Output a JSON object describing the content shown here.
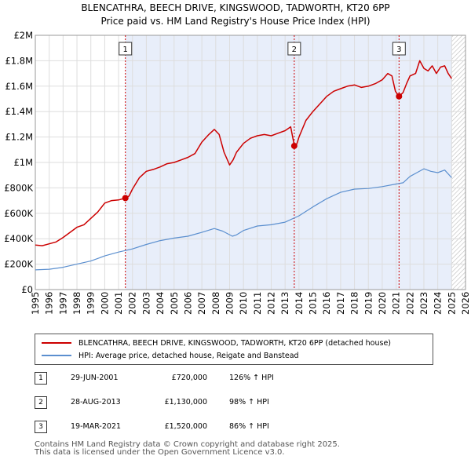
{
  "title_line1": "BLENCATHRA, BEECH DRIVE, KINGSWOOD, TADWORTH, KT20 6PP",
  "title_line2": "Price paid vs. HM Land Registry's House Price Index (HPI)",
  "colors": {
    "property": "#cc0000",
    "hpi": "#5b8fcf",
    "shade": "#e8eefa",
    "marker_line": "#cc0000",
    "grid": "#dddddd"
  },
  "chart_data": {
    "type": "line",
    "title": "Price paid vs. HM Land Registry's House Price Index (HPI)",
    "xlabel": "",
    "ylabel": "",
    "xlim": [
      1995,
      2026
    ],
    "ylim": [
      0,
      2000000
    ],
    "y_ticks": [
      {
        "value": 0,
        "label": "£0"
      },
      {
        "value": 200000,
        "label": "£200K"
      },
      {
        "value": 400000,
        "label": "£400K"
      },
      {
        "value": 600000,
        "label": "£600K"
      },
      {
        "value": 800000,
        "label": "£800K"
      },
      {
        "value": 1000000,
        "label": "£1M"
      },
      {
        "value": 1200000,
        "label": "£1.2M"
      },
      {
        "value": 1400000,
        "label": "£1.4M"
      },
      {
        "value": 1600000,
        "label": "£1.6M"
      },
      {
        "value": 1800000,
        "label": "£1.8M"
      },
      {
        "value": 2000000,
        "label": "£2M"
      }
    ],
    "x_ticks": [
      "1995",
      "1996",
      "1997",
      "1998",
      "1999",
      "2000",
      "2001",
      "2002",
      "2003",
      "2004",
      "2005",
      "2006",
      "2007",
      "2008",
      "2009",
      "2010",
      "2011",
      "2012",
      "2013",
      "2014",
      "2015",
      "2016",
      "2017",
      "2018",
      "2019",
      "2020",
      "2021",
      "2022",
      "2023",
      "2024",
      "2025",
      "2026"
    ],
    "shaded_range": [
      2001.49,
      2025.0
    ],
    "hatched_from": 2025.0,
    "series": [
      {
        "name": "BLENCATHRA, BEECH DRIVE, KINGSWOOD, TADWORTH, KT20 6PP (detached house)",
        "x": [
          1995.0,
          1995.5,
          1996.0,
          1996.5,
          1997.0,
          1997.5,
          1998.0,
          1998.5,
          1999.0,
          1999.5,
          2000.0,
          2000.5,
          2001.0,
          2001.49,
          2001.75,
          2002.0,
          2002.5,
          2003.0,
          2003.5,
          2004.0,
          2004.5,
          2005.0,
          2005.5,
          2006.0,
          2006.5,
          2007.0,
          2007.5,
          2007.9,
          2008.25,
          2008.6,
          2009.0,
          2009.25,
          2009.5,
          2010.0,
          2010.5,
          2011.0,
          2011.5,
          2012.0,
          2012.5,
          2013.0,
          2013.4,
          2013.65,
          2013.8,
          2014.0,
          2014.5,
          2015.0,
          2015.5,
          2016.0,
          2016.5,
          2017.0,
          2017.5,
          2018.0,
          2018.5,
          2019.0,
          2019.5,
          2020.0,
          2020.4,
          2020.7,
          2020.95,
          2021.21,
          2021.5,
          2021.75,
          2022.0,
          2022.4,
          2022.7,
          2023.0,
          2023.3,
          2023.6,
          2023.9,
          2024.2,
          2024.5,
          2024.75,
          2025.0
        ],
        "values": [
          350000,
          345000,
          360000,
          375000,
          410000,
          450000,
          490000,
          510000,
          560000,
          610000,
          680000,
          700000,
          705000,
          720000,
          735000,
          790000,
          880000,
          930000,
          945000,
          965000,
          990000,
          1000000,
          1020000,
          1040000,
          1070000,
          1160000,
          1220000,
          1260000,
          1220000,
          1080000,
          980000,
          1020000,
          1080000,
          1150000,
          1190000,
          1210000,
          1220000,
          1210000,
          1230000,
          1250000,
          1280000,
          1140000,
          1130000,
          1200000,
          1330000,
          1400000,
          1460000,
          1520000,
          1560000,
          1580000,
          1600000,
          1610000,
          1590000,
          1600000,
          1620000,
          1650000,
          1700000,
          1680000,
          1560000,
          1520000,
          1550000,
          1620000,
          1680000,
          1700000,
          1800000,
          1740000,
          1720000,
          1760000,
          1700000,
          1750000,
          1760000,
          1700000,
          1660000
        ]
      },
      {
        "name": "HPI: Average price, detached house, Reigate and Banstead",
        "x": [
          1995.0,
          1996.0,
          1997.0,
          1998.0,
          1999.0,
          2000.0,
          2001.0,
          2002.0,
          2003.0,
          2004.0,
          2005.0,
          2006.0,
          2007.0,
          2007.9,
          2008.5,
          2009.2,
          2009.5,
          2010.0,
          2011.0,
          2012.0,
          2013.0,
          2014.0,
          2015.0,
          2016.0,
          2017.0,
          2018.0,
          2019.0,
          2020.0,
          2021.0,
          2021.5,
          2022.0,
          2022.5,
          2023.0,
          2023.5,
          2024.0,
          2024.5,
          2025.0
        ],
        "values": [
          155000,
          160000,
          175000,
          200000,
          225000,
          265000,
          295000,
          320000,
          355000,
          385000,
          405000,
          420000,
          450000,
          480000,
          460000,
          420000,
          430000,
          465000,
          500000,
          510000,
          530000,
          580000,
          650000,
          715000,
          765000,
          790000,
          795000,
          810000,
          830000,
          840000,
          890000,
          920000,
          950000,
          930000,
          920000,
          940000,
          880000
        ]
      }
    ],
    "sales": [
      {
        "id": "1",
        "x": 2001.49,
        "value": 720000,
        "date": "29-JUN-2001",
        "price": "£720,000",
        "hpi": "126% ↑ HPI"
      },
      {
        "id": "2",
        "x": 2013.66,
        "value": 1130000,
        "date": "28-AUG-2013",
        "price": "£1,130,000",
        "hpi": "98% ↑ HPI"
      },
      {
        "id": "3",
        "x": 2021.21,
        "value": 1520000,
        "date": "19-MAR-2021",
        "price": "£1,520,000",
        "hpi": "86% ↑ HPI"
      }
    ]
  },
  "legend": {
    "property": "BLENCATHRA, BEECH DRIVE, KINGSWOOD, TADWORTH, KT20 6PP (detached house)",
    "hpi": "HPI: Average price, detached house, Reigate and Banstead"
  },
  "table": [
    {
      "num": "1",
      "date": "29-JUN-2001",
      "price": "£720,000",
      "hpi": "126% ↑ HPI"
    },
    {
      "num": "2",
      "date": "28-AUG-2013",
      "price": "£1,130,000",
      "hpi": "98% ↑ HPI"
    },
    {
      "num": "3",
      "date": "19-MAR-2021",
      "price": "£1,520,000",
      "hpi": "86% ↑ HPI"
    }
  ],
  "footer_line1": "Contains HM Land Registry data © Crown copyright and database right 2025.",
  "footer_line2": "This data is licensed under the Open Government Licence v3.0."
}
